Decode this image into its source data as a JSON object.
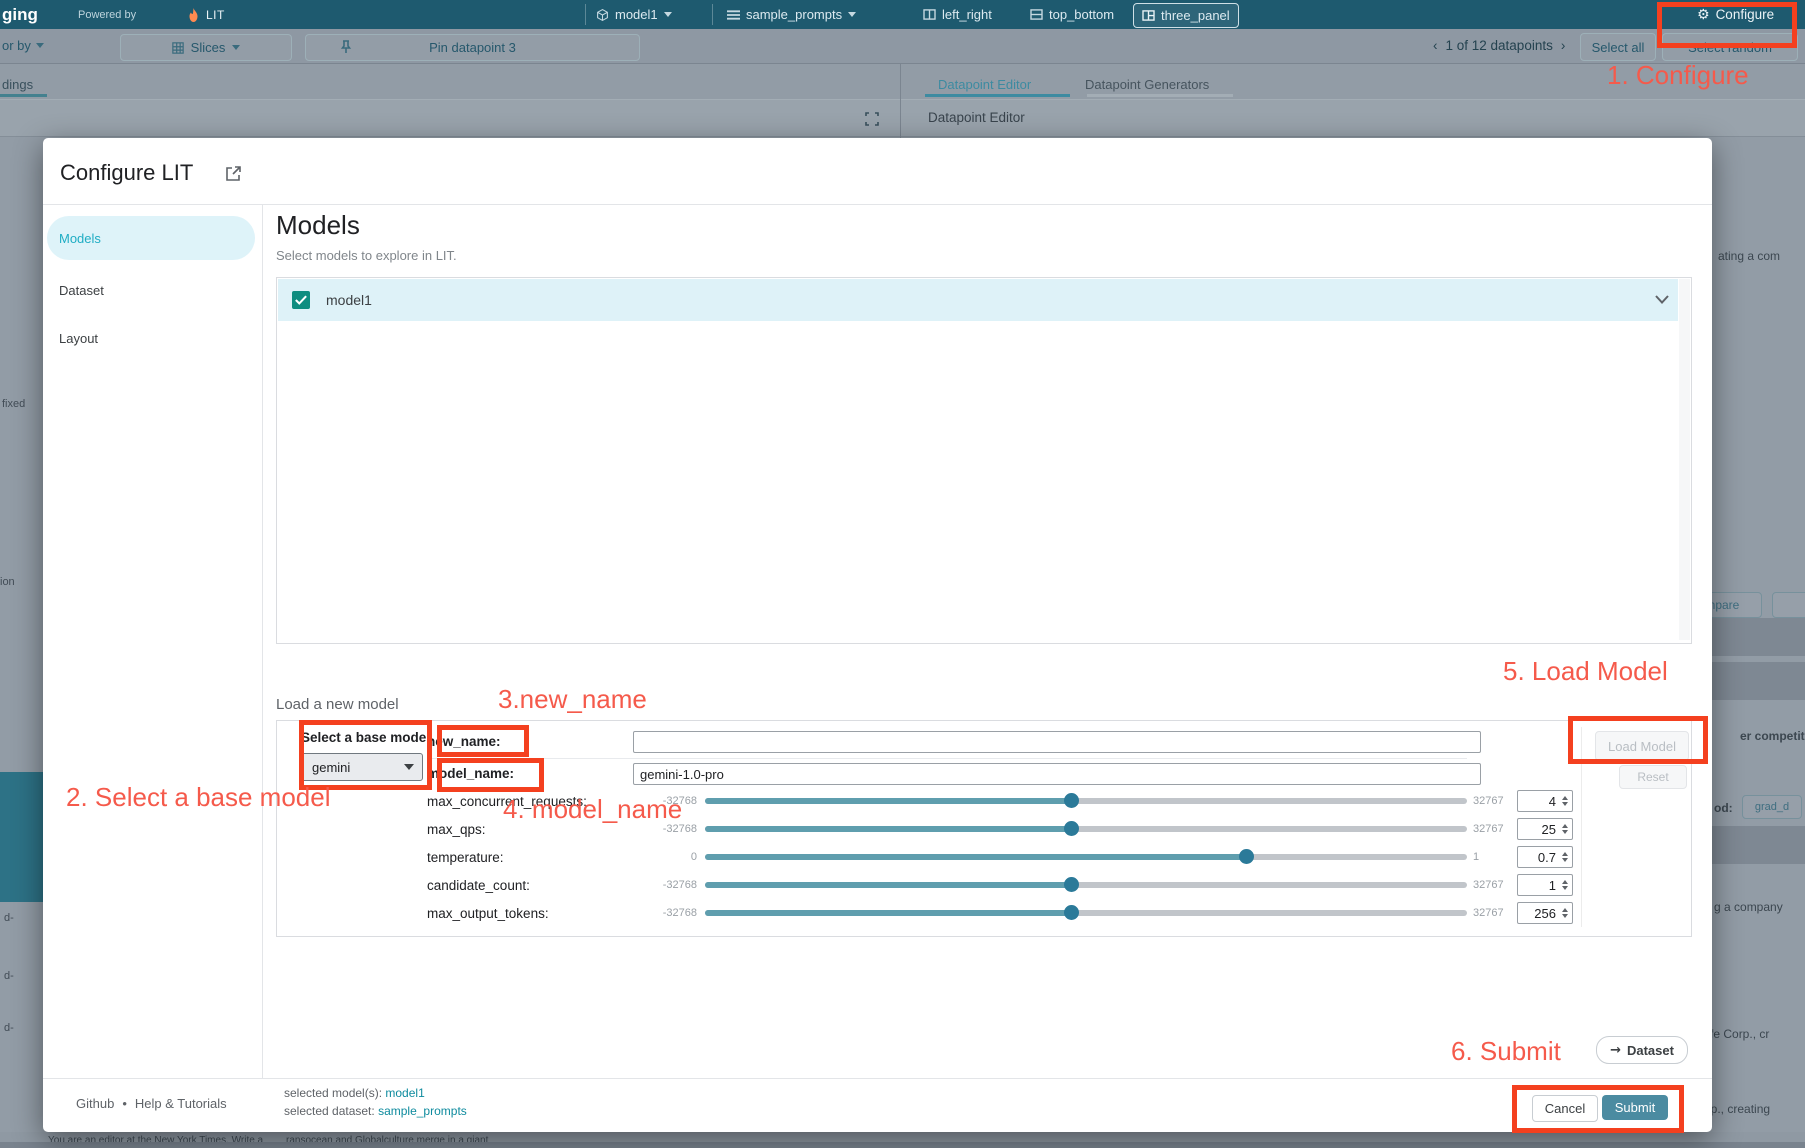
{
  "topbar": {
    "app_name": "ging",
    "powered_by": "Powered by",
    "lit_label": "LIT",
    "model_selector": "model1",
    "dataset_selector": "sample_prompts",
    "layouts": [
      "left_right",
      "top_bottom",
      "three_panel"
    ],
    "configure_label": "Configure"
  },
  "toolbar": {
    "color_by": "or by",
    "slices_label": "Slices",
    "pin_label": "Pin datapoint 3",
    "prev": "‹",
    "pagination": "1 of 12 datapoints",
    "next": "›",
    "select_all": "Select all",
    "select_random": "Select random"
  },
  "background": {
    "left_tab": "dings",
    "editor_tab": "Datapoint Editor",
    "generators_tab": "Datapoint Generators",
    "panel_title": "Datapoint Editor",
    "fragments": {
      "ating": "ating a com",
      "npare": "npare",
      "competito": "er competito",
      "od": "od:",
      "grad": "grad_d",
      "company": "g a company",
      "tafe": "tafe Corp., cr",
      "orp": "orp., creating",
      "editor_row": "You are an editor at the New York Times. Write a",
      "merge_row": "ransocean and Globalculture merge in a giant",
      "fixed": "fixed",
      "ion": "ion",
      "d1": "d-",
      "d2": "d-",
      "d3": "d-"
    }
  },
  "modal": {
    "title": "Configure LIT",
    "sidebar": [
      "Models",
      "Dataset",
      "Layout"
    ],
    "heading": "Models",
    "subtitle": "Select models to explore in LIT.",
    "model_row": "model1",
    "load_section": {
      "label": "Load a new model",
      "base_model_label": "Select a base model",
      "base_model_value": "gemini",
      "new_name_label": "new_name:",
      "new_name_value": "",
      "model_name_label": "model_name:",
      "model_name_value": "gemini-1.0-pro",
      "sliders": [
        {
          "label": "max_concurrent_requests:",
          "min": "-32768",
          "max": "32767",
          "value": "4",
          "pct": 48
        },
        {
          "label": "max_qps:",
          "min": "-32768",
          "max": "32767",
          "value": "25",
          "pct": 48
        },
        {
          "label": "temperature:",
          "min": "0",
          "max": "1",
          "value": "0.7",
          "pct": 71
        },
        {
          "label": "candidate_count:",
          "min": "-32768",
          "max": "32767",
          "value": "1",
          "pct": 48
        },
        {
          "label": "max_output_tokens:",
          "min": "-32768",
          "max": "32767",
          "value": "256",
          "pct": 48
        }
      ],
      "load_model_button": "Load Model",
      "reset_button": "Reset"
    },
    "dataset_button": "Dataset",
    "footer": {
      "github": "Github",
      "dot": "•",
      "help": "Help & Tutorials",
      "selected_models_label": "selected model(s):",
      "selected_models": "model1",
      "selected_dataset_label": "selected dataset:",
      "selected_dataset": "sample_prompts",
      "cancel": "Cancel",
      "submit": "Submit"
    }
  },
  "annotations": [
    "1. Configure",
    "2. Select a base model",
    "3.new_name",
    "4. model_name",
    "5. Load Model",
    "6. Submit"
  ],
  "colors": {
    "header": "#1e5a6f",
    "accent": "#1fadc4",
    "annotation-box": "#f4401f",
    "annotation-text": "#f55a4b",
    "slider-fill": "#5f9eae",
    "slider-thumb": "#2b7a99",
    "submit": "#4b8ba1",
    "checkbox": "#0f8d80",
    "link": "#0e8b9e"
  }
}
